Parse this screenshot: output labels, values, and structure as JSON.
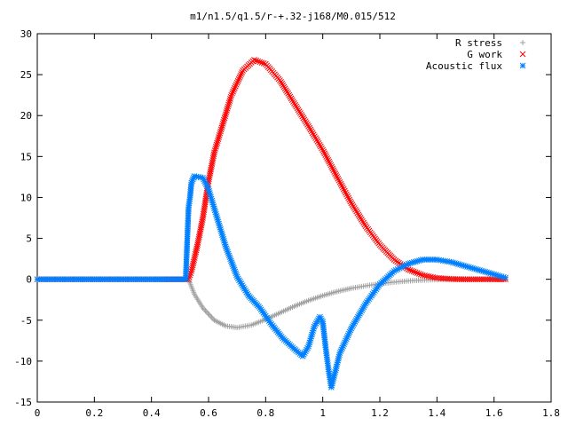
{
  "chart_data": {
    "type": "scatter",
    "title": "m1/n1.5/q1.5/r-+.32-j168/M0.015/512",
    "xlabel": "",
    "ylabel": "",
    "xlim": [
      0,
      1.8
    ],
    "ylim": [
      -15,
      30
    ],
    "x_ticks": [
      "0",
      "0.2",
      "0.4",
      "0.6",
      "0.8",
      "1",
      "1.2",
      "1.4",
      "1.6",
      "1.8"
    ],
    "y_ticks": [
      "-15",
      "-10",
      "-5",
      "0",
      "5",
      "10",
      "15",
      "20",
      "25",
      "30"
    ],
    "legend_position": "top-right",
    "grid": false,
    "series": [
      {
        "name": "R stress",
        "marker": "plus",
        "color": "#a0a0a0",
        "points": [
          [
            0,
            0
          ],
          [
            0.2,
            0
          ],
          [
            0.4,
            0
          ],
          [
            0.53,
            0
          ],
          [
            0.55,
            -1.8
          ],
          [
            0.58,
            -3.5
          ],
          [
            0.62,
            -5.0
          ],
          [
            0.66,
            -5.7
          ],
          [
            0.7,
            -5.9
          ],
          [
            0.75,
            -5.6
          ],
          [
            0.8,
            -4.9
          ],
          [
            0.85,
            -4.1
          ],
          [
            0.9,
            -3.3
          ],
          [
            0.95,
            -2.6
          ],
          [
            1.0,
            -2.0
          ],
          [
            1.05,
            -1.5
          ],
          [
            1.1,
            -1.1
          ],
          [
            1.15,
            -0.8
          ],
          [
            1.2,
            -0.55
          ],
          [
            1.25,
            -0.35
          ],
          [
            1.3,
            -0.2
          ],
          [
            1.35,
            -0.1
          ],
          [
            1.4,
            -0.03
          ],
          [
            1.45,
            0
          ],
          [
            1.5,
            0
          ],
          [
            1.55,
            0
          ],
          [
            1.6,
            0
          ],
          [
            1.64,
            0
          ]
        ]
      },
      {
        "name": "G work",
        "marker": "cross",
        "color": "#ff0000",
        "points": [
          [
            0,
            0
          ],
          [
            0.2,
            0
          ],
          [
            0.4,
            0
          ],
          [
            0.53,
            0
          ],
          [
            0.54,
            1.0
          ],
          [
            0.56,
            4.0
          ],
          [
            0.58,
            7.5
          ],
          [
            0.6,
            12.0
          ],
          [
            0.62,
            15.5
          ],
          [
            0.65,
            19.0
          ],
          [
            0.68,
            22.5
          ],
          [
            0.72,
            25.5
          ],
          [
            0.76,
            26.8
          ],
          [
            0.8,
            26.3
          ],
          [
            0.85,
            24.3
          ],
          [
            0.9,
            21.5
          ],
          [
            0.95,
            18.7
          ],
          [
            1.0,
            15.8
          ],
          [
            1.05,
            12.5
          ],
          [
            1.1,
            9.3
          ],
          [
            1.15,
            6.5
          ],
          [
            1.2,
            4.2
          ],
          [
            1.25,
            2.4
          ],
          [
            1.3,
            1.2
          ],
          [
            1.35,
            0.5
          ],
          [
            1.4,
            0.15
          ],
          [
            1.45,
            0.03
          ],
          [
            1.5,
            0
          ],
          [
            1.55,
            0
          ],
          [
            1.6,
            0
          ],
          [
            1.64,
            0
          ]
        ]
      },
      {
        "name": "Acoustic flux",
        "marker": "star",
        "color": "#0080ff",
        "points": [
          [
            0,
            0
          ],
          [
            0.2,
            0
          ],
          [
            0.4,
            0
          ],
          [
            0.52,
            0
          ],
          [
            0.525,
            4.5
          ],
          [
            0.53,
            8.8
          ],
          [
            0.535,
            10.0
          ],
          [
            0.54,
            11.8
          ],
          [
            0.55,
            12.6
          ],
          [
            0.58,
            12.4
          ],
          [
            0.6,
            11.0
          ],
          [
            0.63,
            7.5
          ],
          [
            0.66,
            4.0
          ],
          [
            0.7,
            0.3
          ],
          [
            0.74,
            -2.0
          ],
          [
            0.78,
            -3.5
          ],
          [
            0.82,
            -5.5
          ],
          [
            0.86,
            -7.2
          ],
          [
            0.9,
            -8.5
          ],
          [
            0.93,
            -9.4
          ],
          [
            0.95,
            -8.2
          ],
          [
            0.97,
            -5.8
          ],
          [
            0.99,
            -4.6
          ],
          [
            1.0,
            -5.2
          ],
          [
            1.01,
            -8.3
          ],
          [
            1.02,
            -11.0
          ],
          [
            1.03,
            -13.2
          ],
          [
            1.04,
            -11.8
          ],
          [
            1.06,
            -9.0
          ],
          [
            1.1,
            -6.0
          ],
          [
            1.15,
            -3.0
          ],
          [
            1.2,
            -0.6
          ],
          [
            1.25,
            1.0
          ],
          [
            1.3,
            1.9
          ],
          [
            1.35,
            2.4
          ],
          [
            1.4,
            2.4
          ],
          [
            1.45,
            2.1
          ],
          [
            1.5,
            1.6
          ],
          [
            1.55,
            1.1
          ],
          [
            1.6,
            0.6
          ],
          [
            1.64,
            0.2
          ]
        ]
      }
    ]
  }
}
